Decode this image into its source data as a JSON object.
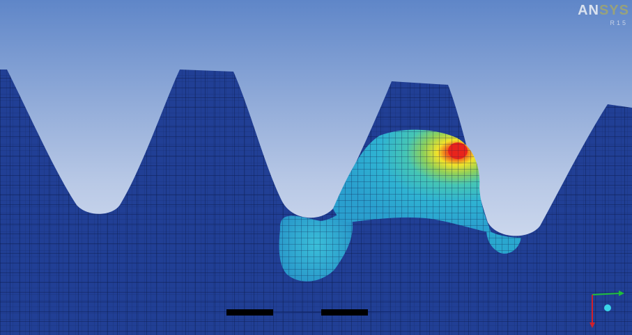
{
  "viewer": {
    "logo_text": "AN",
    "logo_partial": "SYS",
    "logo_sub": "R15"
  },
  "colors": {
    "sky_top": "#5f86c8",
    "sky_bottom": "#e9eef8",
    "mesh_base": "#1e3f93",
    "mesh_line": "#0e1f55",
    "stress_low": "#2fb9cf",
    "stress_mid": "#7fd06a",
    "stress_high": "#f2e22a",
    "stress_peak": "#e8241c",
    "axis_x": "#1fbf3a",
    "axis_y": "#d2202a",
    "axis_z": "#3ad4e8"
  },
  "triad": {
    "x_axis_icon": "x-axis-arrow-icon",
    "y_axis_icon": "y-axis-arrow-icon",
    "z_axis_icon": "z-axis-sphere-icon"
  },
  "legend": {
    "scale_bar_icon": "scale-bar-icon"
  }
}
